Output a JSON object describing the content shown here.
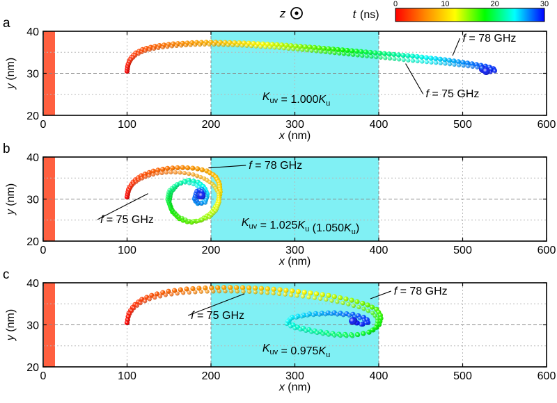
{
  "colorbar": {
    "axis_label": "t",
    "unit": "(ns)",
    "ticks": [
      "0",
      "10",
      "20",
      "30"
    ],
    "range": [
      0,
      30
    ],
    "colors": [
      "#ff0000",
      "#ff8800",
      "#ffff00",
      "#00ff00",
      "#00ffff",
      "#0000ff"
    ]
  },
  "field_direction": {
    "label": "z",
    "symbol": "out-of-plane"
  },
  "chart_data": [
    {
      "type": "scatter",
      "panel": "a",
      "xlabel": "x (nm)",
      "ylabel": "y (nm)",
      "xlim": [
        0,
        600
      ],
      "ylim": [
        20,
        40
      ],
      "xticks": [
        "0",
        "100",
        "200",
        "300",
        "400",
        "500",
        "600"
      ],
      "yticks": [
        "20",
        "30",
        "40"
      ],
      "region_x": [
        200,
        400
      ],
      "region_label": {
        "prefix": "K",
        "sub1": "uv",
        "mid": " = 1.000K",
        "sub2": "u",
        "suffix": ""
      },
      "annotations": [
        {
          "text": "f = 78 GHz",
          "x": 500,
          "y": 37.5,
          "target": [
            488,
            34.2
          ]
        },
        {
          "text": "f = 75 GHz",
          "x": 456,
          "y": 24.3,
          "target": [
            432,
            32.3
          ]
        }
      ],
      "series": [
        {
          "name": "f = 78 GHz",
          "kind": "trajectory",
          "x": [
            100,
            101,
            104,
            110,
            120,
            135,
            155,
            180,
            200,
            240,
            280,
            320,
            360,
            400,
            440,
            480,
            510,
            530,
            538,
            530,
            524
          ],
          "y": [
            30.5,
            32,
            33.5,
            34.8,
            35.8,
            36.5,
            37,
            37.3,
            37.4,
            37.2,
            36.8,
            36.2,
            35.5,
            34.8,
            34.1,
            33.2,
            32.3,
            31.6,
            31,
            30.7,
            31
          ]
        },
        {
          "name": "f = 75 GHz",
          "kind": "trajectory",
          "x": [
            100,
            101,
            104,
            110,
            120,
            135,
            155,
            180,
            200,
            240,
            280,
            320,
            360,
            400,
            440,
            480,
            515,
            533,
            541,
            533,
            528
          ],
          "y": [
            30.5,
            31.8,
            33.1,
            34.3,
            35.3,
            36,
            36.5,
            36.8,
            36.9,
            36.6,
            36.1,
            35.4,
            34.6,
            33.8,
            33,
            32.3,
            31.5,
            31,
            30.6,
            30.3,
            30.5
          ]
        }
      ]
    },
    {
      "type": "scatter",
      "panel": "b",
      "xlabel": "x (nm)",
      "ylabel": "y (nm)",
      "xlim": [
        0,
        600
      ],
      "ylim": [
        20,
        40
      ],
      "xticks": [
        "0",
        "100",
        "200",
        "300",
        "400",
        "500",
        "600"
      ],
      "yticks": [
        "20",
        "30",
        "40"
      ],
      "region_x": [
        200,
        400
      ],
      "region_label": {
        "prefix": "K",
        "sub1": "uv",
        "mid": " = 1.025K",
        "sub2": "u",
        "suffix": " (1.050K",
        "sub3": "u",
        "end": ")"
      },
      "annotations": [
        {
          "text": "f = 78 GHz",
          "x": 245,
          "y": 37.2,
          "target": [
            197,
            37.4
          ]
        },
        {
          "text": "f = 75 GHz",
          "x": 68,
          "y": 24.3,
          "target": [
            125,
            31.3
          ]
        }
      ],
      "series": [
        {
          "name": "f = 78 GHz",
          "kind": "trajectory",
          "x": [
            100,
            102,
            108,
            118,
            132,
            148,
            165,
            182,
            195,
            205,
            210,
            211,
            208,
            200,
            188,
            175,
            163,
            154,
            150,
            152,
            160,
            172,
            184,
            192,
            196,
            192,
            185,
            180,
            183,
            188,
            192,
            190,
            186
          ],
          "y": [
            30.5,
            32.5,
            34.3,
            35.7,
            36.7,
            37.3,
            37.5,
            37.3,
            36.7,
            35.5,
            33.8,
            31.5,
            28.9,
            26.6,
            25,
            24.4,
            25.2,
            27,
            29.3,
            31.6,
            33.5,
            34.5,
            34.1,
            32.8,
            31,
            29.3,
            28.8,
            29.9,
            31.8,
            32.6,
            31.6,
            30.5,
            30.9
          ]
        },
        {
          "name": "f = 75 GHz",
          "kind": "trajectory",
          "x": [
            100,
            102,
            106,
            114,
            124,
            136,
            150,
            165,
            180,
            193,
            203,
            209,
            210,
            206,
            198,
            186,
            173,
            161,
            152,
            148,
            150,
            158,
            170,
            182,
            191,
            195,
            193,
            186,
            181,
            183,
            188,
            191,
            189
          ],
          "y": [
            30.5,
            32,
            33.4,
            34.6,
            35.5,
            36.1,
            36.4,
            36.3,
            35.8,
            34.8,
            33.4,
            31.5,
            29.4,
            27.3,
            25.7,
            24.8,
            24.8,
            25.9,
            27.8,
            30,
            32,
            33.4,
            34,
            33.4,
            32,
            30.3,
            29,
            28.9,
            30.3,
            31.9,
            32.2,
            31.3,
            30.8
          ]
        }
      ]
    },
    {
      "type": "scatter",
      "panel": "c",
      "xlabel": "x (nm)",
      "ylabel": "y (nm)",
      "xlim": [
        0,
        600
      ],
      "ylim": [
        20,
        40
      ],
      "xticks": [
        "0",
        "100",
        "200",
        "300",
        "400",
        "500",
        "600"
      ],
      "yticks": [
        "20",
        "30",
        "40"
      ],
      "region_x": [
        200,
        400
      ],
      "region_label": {
        "prefix": "K",
        "sub1": "uv",
        "mid": " = 0.975K",
        "sub2": "u",
        "suffix": ""
      },
      "annotations": [
        {
          "text": "f = 78 GHz",
          "x": 418,
          "y": 37.2,
          "target": [
            390,
            36.2
          ]
        },
        {
          "text": "f = 75 GHz",
          "x": 176,
          "y": 31.4,
          "target": [
            240,
            37.4
          ]
        }
      ],
      "series": [
        {
          "name": "f = 78 GHz",
          "kind": "trajectory",
          "x": [
            100,
            102,
            108,
            118,
            132,
            150,
            170,
            195,
            220,
            250,
            280,
            310,
            340,
            365,
            385,
            398,
            403,
            400,
            390,
            372,
            350,
            325,
            302,
            291,
            297,
            318,
            345,
            370,
            385,
            388,
            380,
            372,
            370
          ],
          "y": [
            30.5,
            32.7,
            34.6,
            36.1,
            37.2,
            38,
            38.5,
            38.8,
            38.9,
            38.8,
            38.4,
            37.8,
            37,
            36,
            34.9,
            33.6,
            31.9,
            29.8,
            28.3,
            27.6,
            27.8,
            28.5,
            29.5,
            30.7,
            31.8,
            32.6,
            32.9,
            32.5,
            31.6,
            30.6,
            30.1,
            30.6,
            31
          ]
        },
        {
          "name": "f = 75 GHz",
          "kind": "trajectory",
          "x": [
            100,
            102,
            107,
            116,
            129,
            146,
            166,
            190,
            215,
            245,
            275,
            305,
            335,
            360,
            380,
            393,
            399,
            397,
            387,
            368,
            345,
            320,
            298,
            289,
            295,
            316,
            343,
            367,
            382,
            385,
            378,
            371,
            369
          ],
          "y": [
            30.5,
            32.2,
            33.8,
            35.2,
            36.3,
            37.1,
            37.6,
            37.9,
            38,
            37.9,
            37.5,
            36.9,
            36.1,
            35.1,
            34,
            32.8,
            31.3,
            29.5,
            28.1,
            27.3,
            27.5,
            28.3,
            29.3,
            30.4,
            31.5,
            32.3,
            32.6,
            32.2,
            31.3,
            30.4,
            30,
            30.5,
            30.9
          ]
        }
      ]
    }
  ]
}
